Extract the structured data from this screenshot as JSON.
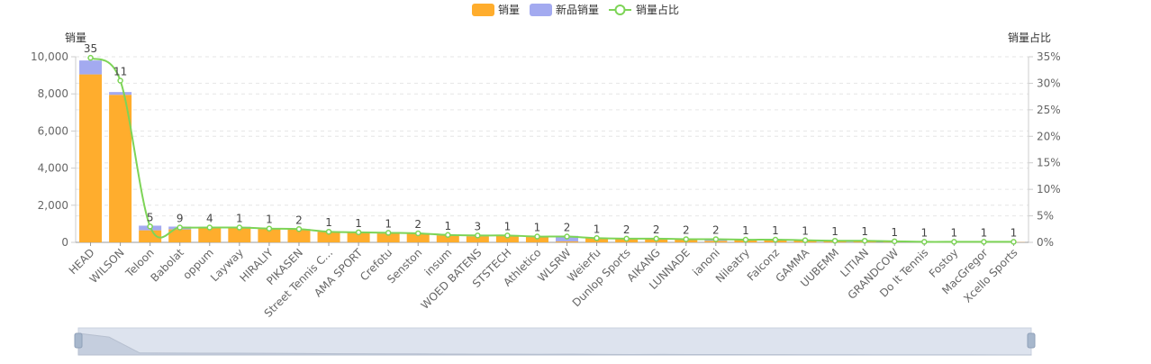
{
  "chart_data": {
    "type": "bar",
    "legend": {
      "position": "top-center",
      "items": [
        {
          "key": "sales",
          "label": "销量",
          "color": "#ffad2d",
          "kind": "bar"
        },
        {
          "key": "new",
          "label": "新品销量",
          "color": "#a3aaf0",
          "kind": "bar"
        },
        {
          "key": "ratio",
          "label": "销量占比",
          "color": "#7dd457",
          "kind": "line"
        }
      ]
    },
    "ylabel_left": "销量",
    "ylabel_right": "销量占比",
    "ylim_left": [
      0,
      10000
    ],
    "ylim_right": [
      0,
      35
    ],
    "left_ticks": [
      "0",
      "2,000",
      "4,000",
      "6,000",
      "8,000",
      "10,000"
    ],
    "right_ticks": [
      "0%",
      "5%",
      "10%",
      "15%",
      "20%",
      "25%",
      "30%",
      "35%"
    ],
    "grid": "dashed-horizontal",
    "categories": [
      "HEAD",
      "WILSON",
      "Teloon",
      "Babolat",
      "oppum",
      "Layway",
      "HIRALIY",
      "PIKASEN",
      "Street Tennis C...",
      "AMA SPORT",
      "Crefotu",
      "Senston",
      "insum",
      "WOED BATENS",
      "STSTECH",
      "Athletico",
      "WLSRW",
      "Weierfu",
      "Dunlop Sports",
      "AIKANG",
      "LUNNADE",
      "ianoni",
      "Nileatry",
      "Falconz",
      "GAMMA",
      "UUBEMM",
      "LITIAN",
      "GRANDCOW",
      "Do It Tennis",
      "Fostoy",
      "MacGregor",
      "Xcello Sports"
    ],
    "series": [
      {
        "name": "销量",
        "values": [
          9050,
          7950,
          650,
          700,
          780,
          780,
          720,
          680,
          570,
          540,
          480,
          460,
          380,
          330,
          350,
          290,
          50,
          220,
          200,
          210,
          180,
          80,
          140,
          130,
          100,
          70,
          60,
          40,
          30,
          25,
          20,
          15
        ]
      },
      {
        "name": "新品销量",
        "values": [
          750,
          150,
          250,
          150,
          60,
          60,
          50,
          40,
          30,
          30,
          30,
          30,
          30,
          30,
          30,
          30,
          300,
          20,
          20,
          20,
          20,
          100,
          10,
          10,
          10,
          10,
          10,
          5,
          5,
          5,
          5,
          5
        ]
      },
      {
        "name": "销量占比",
        "values": [
          34.8,
          30.5,
          3.0,
          2.8,
          2.8,
          2.8,
          2.6,
          2.5,
          2.0,
          1.9,
          1.8,
          1.7,
          1.4,
          1.3,
          1.3,
          1.1,
          1.1,
          0.8,
          0.7,
          0.7,
          0.6,
          0.6,
          0.5,
          0.5,
          0.4,
          0.3,
          0.3,
          0.2,
          0.1,
          0.1,
          0.1,
          0.1
        ]
      }
    ],
    "data_labels": [
      "35",
      "11",
      "5",
      "9",
      "4",
      "1",
      "1",
      "2",
      "1",
      "1",
      "1",
      "2",
      "1",
      "3",
      "1",
      "1",
      "2",
      "1",
      "2",
      "2",
      "2",
      "2",
      "1",
      "1",
      "1",
      "1",
      "1",
      "1",
      "1",
      "1",
      "1",
      "1"
    ],
    "zoom_slider": {
      "start_percent": 0,
      "end_percent": 100
    }
  }
}
